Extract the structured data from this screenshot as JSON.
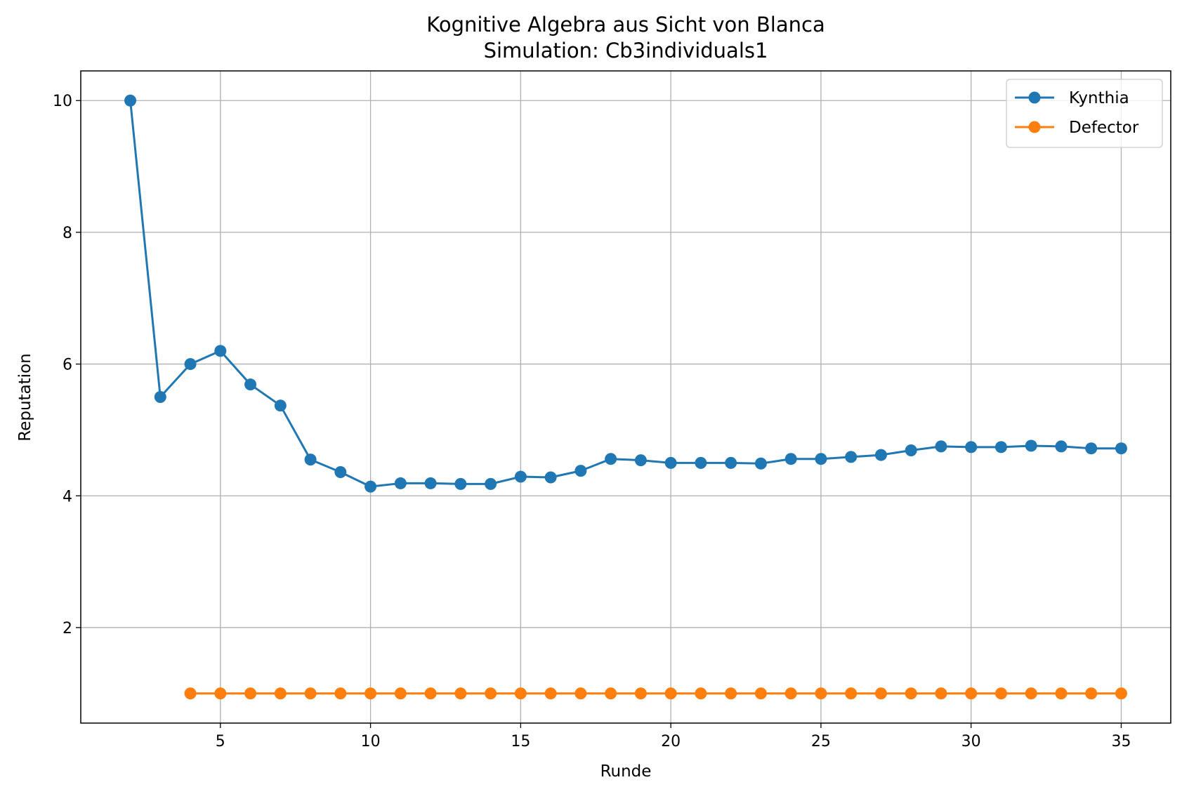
{
  "chart_data": {
    "type": "line",
    "title": "Kognitive Algebra aus Sicht von Blanca",
    "subtitle": "Simulation: Cb3individuals1",
    "xlabel": "Runde",
    "ylabel": "Reputation",
    "xlim": [
      0.35,
      36.65
    ],
    "ylim": [
      0.55,
      10.45
    ],
    "xticks": [
      5,
      10,
      15,
      20,
      25,
      30,
      35
    ],
    "yticks": [
      2,
      4,
      6,
      8,
      10
    ],
    "grid": true,
    "legend_position": "top-right",
    "series": [
      {
        "name": "Kynthia",
        "color": "#1f77b4",
        "x": [
          2,
          3,
          4,
          5,
          6,
          7,
          8,
          9,
          10,
          11,
          12,
          13,
          14,
          15,
          16,
          17,
          18,
          19,
          20,
          21,
          22,
          23,
          24,
          25,
          26,
          27,
          28,
          29,
          30,
          31,
          32,
          33,
          34,
          35
        ],
        "y": [
          10.0,
          5.5,
          6.0,
          6.2,
          5.69,
          5.37,
          4.55,
          4.36,
          4.14,
          4.19,
          4.19,
          4.18,
          4.18,
          4.29,
          4.28,
          4.38,
          4.56,
          4.54,
          4.5,
          4.5,
          4.5,
          4.49,
          4.56,
          4.56,
          4.59,
          4.62,
          4.69,
          4.75,
          4.74,
          4.74,
          4.76,
          4.75,
          4.72,
          4.72
        ]
      },
      {
        "name": "Defector",
        "color": "#ff7f0e",
        "x": [
          4,
          5,
          6,
          7,
          8,
          9,
          10,
          11,
          12,
          13,
          14,
          15,
          16,
          17,
          18,
          19,
          20,
          21,
          22,
          23,
          24,
          25,
          26,
          27,
          28,
          29,
          30,
          31,
          32,
          33,
          34,
          35
        ],
        "y": [
          1,
          1,
          1,
          1,
          1,
          1,
          1,
          1,
          1,
          1,
          1,
          1,
          1,
          1,
          1,
          1,
          1,
          1,
          1,
          1,
          1,
          1,
          1,
          1,
          1,
          1,
          1,
          1,
          1,
          1,
          1,
          1
        ]
      }
    ]
  }
}
